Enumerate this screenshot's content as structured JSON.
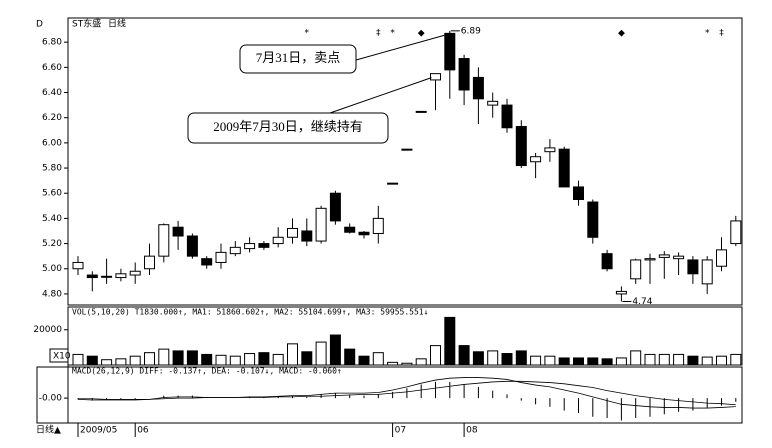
{
  "chart_data": {
    "type": "candlestick",
    "corner_label": "D",
    "title": "ST东盛",
    "subtitle": "日线",
    "x_axis_label": "日线▲",
    "categories": [
      "2009/05",
      null,
      null,
      null,
      "06",
      null,
      null,
      null,
      null,
      null,
      null,
      null,
      null,
      null,
      null,
      null,
      null,
      null,
      null,
      null,
      null,
      null,
      "07",
      null,
      null,
      null,
      null,
      "08",
      null,
      null,
      null,
      null,
      null,
      null,
      null,
      null,
      null,
      null,
      null,
      null,
      null,
      null,
      null,
      null,
      null,
      null,
      null
    ],
    "open": [
      5.0,
      4.95,
      4.94,
      4.93,
      4.95,
      5.0,
      5.1,
      5.33,
      5.26,
      5.08,
      5.05,
      5.12,
      5.16,
      5.2,
      5.2,
      5.25,
      5.3,
      5.22,
      5.6,
      5.33,
      5.29,
      5.28,
      5.68,
      5.95,
      6.25,
      6.5,
      6.87,
      6.67,
      6.52,
      6.3,
      6.3,
      6.13,
      5.85,
      5.93,
      5.95,
      5.65,
      5.53,
      5.12,
      4.8,
      4.92,
      5.07,
      5.09,
      5.08,
      5.07,
      4.88,
      5.02,
      5.2
    ],
    "high": [
      5.1,
      4.98,
      5.08,
      5.0,
      5.05,
      5.2,
      5.36,
      5.38,
      5.28,
      5.1,
      5.2,
      5.22,
      5.25,
      5.22,
      5.33,
      5.4,
      5.4,
      5.5,
      5.62,
      5.36,
      5.3,
      5.5,
      5.68,
      5.95,
      6.25,
      6.55,
      6.89,
      6.7,
      6.6,
      6.4,
      6.35,
      6.18,
      5.92,
      6.03,
      5.97,
      5.7,
      5.55,
      5.15,
      4.86,
      5.08,
      5.12,
      5.14,
      5.13,
      5.1,
      5.1,
      5.25,
      5.42
    ],
    "low": [
      4.95,
      4.82,
      4.88,
      4.9,
      4.88,
      4.95,
      5.05,
      5.15,
      5.08,
      5.0,
      5.0,
      5.1,
      5.13,
      5.15,
      5.17,
      5.2,
      5.18,
      5.2,
      5.35,
      5.28,
      5.24,
      5.2,
      5.68,
      5.95,
      6.25,
      6.26,
      6.35,
      6.3,
      6.15,
      6.2,
      6.08,
      5.8,
      5.72,
      5.85,
      5.65,
      5.5,
      5.2,
      4.98,
      4.74,
      4.88,
      4.88,
      4.92,
      4.95,
      4.88,
      4.8,
      4.98,
      5.18
    ],
    "close": [
      5.05,
      4.93,
      4.94,
      4.96,
      4.98,
      5.1,
      5.35,
      5.26,
      5.1,
      5.03,
      5.13,
      5.17,
      5.2,
      5.17,
      5.25,
      5.32,
      5.22,
      5.48,
      5.38,
      5.29,
      5.27,
      5.4,
      5.68,
      5.95,
      6.25,
      6.55,
      6.58,
      6.42,
      6.35,
      6.33,
      6.12,
      5.82,
      5.89,
      5.96,
      5.65,
      5.55,
      5.25,
      5.0,
      4.82,
      5.07,
      5.08,
      5.11,
      5.1,
      4.96,
      5.07,
      5.15,
      5.38
    ],
    "ylim": [
      4.712,
      6.992
    ],
    "yticks": [
      {
        "value": 4.8,
        "label": "4.80"
      },
      {
        "value": 5.0,
        "label": "5.00"
      },
      {
        "value": 5.2,
        "label": "5.20"
      },
      {
        "value": 5.4,
        "label": "5.40"
      },
      {
        "value": 5.6,
        "label": "5.60"
      },
      {
        "value": 5.8,
        "label": "5.80"
      },
      {
        "value": 6.0,
        "label": "6.00"
      },
      {
        "value": 6.2,
        "label": "6.20"
      },
      {
        "value": 6.4,
        "label": "6.40"
      },
      {
        "value": 6.6,
        "label": "6.60"
      },
      {
        "value": 6.8,
        "label": "6.80"
      }
    ],
    "events": [
      null,
      null,
      null,
      null,
      null,
      null,
      null,
      null,
      null,
      null,
      null,
      null,
      null,
      null,
      null,
      null,
      "*",
      null,
      null,
      null,
      null,
      "‡",
      "*",
      null,
      "◆",
      null,
      null,
      null,
      null,
      null,
      null,
      null,
      null,
      null,
      null,
      null,
      null,
      null,
      "◆",
      null,
      null,
      null,
      null,
      null,
      "*",
      "‡",
      null
    ],
    "annotations": [
      {
        "text": "7月31日，卖点",
        "index": 26
      },
      {
        "text": "2009年7月30日，继续持有",
        "index": 25
      }
    ],
    "volume": {
      "title": "VOL(5,10,20) T1830.000↑, MA1: 51860.602↑, MA2: 55104.699↑, MA3: 59955.551↓",
      "multiplier_label": "X10",
      "values": [
        6000,
        5000,
        3000,
        3500,
        5000,
        7000,
        9000,
        8000,
        8000,
        6000,
        5500,
        5000,
        6500,
        7000,
        6000,
        12000,
        7500,
        13000,
        17000,
        9000,
        5000,
        7000,
        1500,
        1000,
        3500,
        11000,
        27000,
        11000,
        7500,
        8000,
        6500,
        8000,
        5000,
        5000,
        4000,
        4000,
        4000,
        3500,
        4000,
        8000,
        6000,
        6000,
        6000,
        5000,
        4500,
        5000,
        6000
      ],
      "ylim": [
        0,
        32900
      ],
      "yticks": [
        20000
      ]
    },
    "macd": {
      "title": "MACD(26,12,9) DIFF: -0.137↑, DEA: -0.107↓, MACD: -0.060↑",
      "diff": [
        -0.02,
        -0.03,
        -0.03,
        -0.03,
        -0.03,
        -0.02,
        0.01,
        0.02,
        0.02,
        0.01,
        0.01,
        0.01,
        0.02,
        0.02,
        0.03,
        0.04,
        0.04,
        0.06,
        0.08,
        0.08,
        0.08,
        0.09,
        0.13,
        0.18,
        0.24,
        0.29,
        0.32,
        0.33,
        0.33,
        0.32,
        0.3,
        0.25,
        0.21,
        0.18,
        0.13,
        0.08,
        0.02,
        -0.04,
        -0.1,
        -0.12,
        -0.14,
        -0.15,
        -0.15,
        -0.16,
        -0.16,
        -0.15,
        -0.137
      ],
      "dea": [
        -0.01,
        -0.01,
        -0.02,
        -0.02,
        -0.02,
        -0.02,
        -0.01,
        0.0,
        0.0,
        0.01,
        0.01,
        0.01,
        0.01,
        0.01,
        0.02,
        0.02,
        0.03,
        0.03,
        0.04,
        0.05,
        0.06,
        0.06,
        0.08,
        0.1,
        0.13,
        0.16,
        0.19,
        0.22,
        0.24,
        0.26,
        0.27,
        0.27,
        0.26,
        0.25,
        0.23,
        0.2,
        0.17,
        0.12,
        0.08,
        0.04,
        0.01,
        -0.02,
        -0.04,
        -0.06,
        -0.08,
        -0.09,
        -0.107
      ],
      "histogram": [
        -0.02,
        -0.04,
        -0.02,
        -0.02,
        -0.02,
        0,
        0.04,
        0.04,
        0.04,
        0,
        0,
        0,
        0.02,
        0.02,
        0.02,
        0.04,
        0.02,
        0.06,
        0.08,
        0.06,
        0.04,
        0.06,
        0.1,
        0.16,
        0.22,
        0.26,
        0.26,
        0.22,
        0.18,
        0.12,
        0.06,
        -0.04,
        -0.1,
        -0.14,
        -0.2,
        -0.24,
        -0.3,
        -0.32,
        -0.36,
        -0.32,
        -0.3,
        -0.26,
        -0.22,
        -0.2,
        -0.16,
        -0.12,
        -0.06
      ],
      "ylim": [
        -0.4,
        0.5
      ],
      "yticks": [
        {
          "value": 0,
          "label": "-0.00"
        }
      ]
    }
  }
}
